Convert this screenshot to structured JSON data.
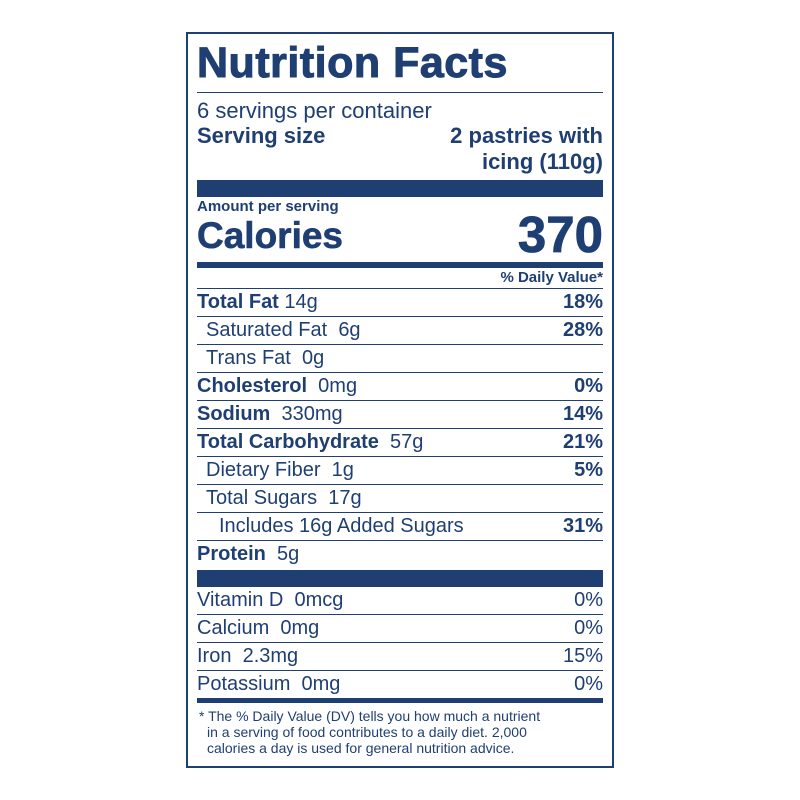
{
  "title": "Nutrition Facts",
  "servings_per_container": "6 servings per container",
  "serving_size_label": "Serving size",
  "serving_size_value_line1": "2 pastries with",
  "serving_size_value_line2": "icing (110g)",
  "amount_per_serving": "Amount per serving",
  "calories_label": "Calories",
  "calories_value": "370",
  "dv_header": "% Daily Value*",
  "nutrients": [
    {
      "name": "Total Fat",
      "amount": "14g",
      "dv": "18%"
    },
    {
      "name": "Saturated Fat",
      "amount": "6g",
      "dv": "28%"
    },
    {
      "name": "Trans Fat",
      "amount": "0g",
      "dv": ""
    },
    {
      "name": "Cholesterol",
      "amount": "0mg",
      "dv": "0%"
    },
    {
      "name": "Sodium",
      "amount": "330mg",
      "dv": "14%"
    },
    {
      "name": "Total Carbohydrate",
      "amount": "57g",
      "dv": "21%"
    },
    {
      "name": "Dietary Fiber",
      "amount": "1g",
      "dv": "5%"
    },
    {
      "name": "Total Sugars",
      "amount": "17g",
      "dv": ""
    },
    {
      "name": "Includes 16g Added Sugars",
      "amount": "",
      "dv": "31%"
    },
    {
      "name": "Protein",
      "amount": "5g",
      "dv": ""
    }
  ],
  "vitamins": [
    {
      "name": "Vitamin D",
      "amount": "0mcg",
      "dv": "0%"
    },
    {
      "name": "Calcium",
      "amount": "0mg",
      "dv": "0%"
    },
    {
      "name": "Iron",
      "amount": "2.3mg",
      "dv": "15%"
    },
    {
      "name": "Potassium",
      "amount": "0mg",
      "dv": "0%"
    }
  ],
  "footnote_line1": "* The % Daily Value (DV) tells you how much a nutrient",
  "footnote_line2": "in a serving of food contributes to a daily diet. 2,000",
  "footnote_line3": "calories a day is used for general nutrition advice.",
  "colors": {
    "ink": "#1f3f73",
    "background": "#ffffff"
  }
}
